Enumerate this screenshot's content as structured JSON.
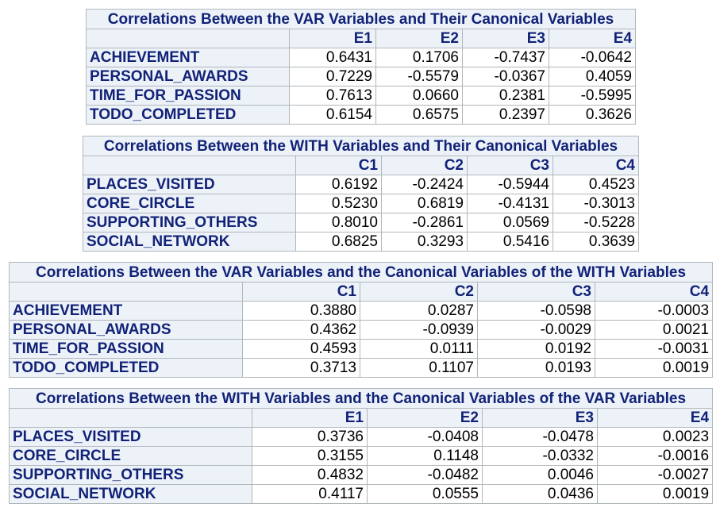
{
  "tables": [
    {
      "title": "Correlations Between the VAR Variables and Their Canonical Variables",
      "columns": [
        "E1",
        "E2",
        "E3",
        "E4"
      ],
      "rows": [
        {
          "label": "ACHIEVEMENT",
          "values": [
            "0.6431",
            "0.1706",
            "-0.7437",
            "-0.0642"
          ]
        },
        {
          "label": "PERSONAL_AWARDS",
          "values": [
            "0.7229",
            "-0.5579",
            "-0.0367",
            "0.4059"
          ]
        },
        {
          "label": "TIME_FOR_PASSION",
          "values": [
            "0.7613",
            "0.0660",
            "0.2381",
            "-0.5995"
          ]
        },
        {
          "label": "TODO_COMPLETED",
          "values": [
            "0.6154",
            "0.6575",
            "0.2397",
            "0.3626"
          ]
        }
      ]
    },
    {
      "title": "Correlations Between the WITH Variables and Their Canonical Variables",
      "columns": [
        "C1",
        "C2",
        "C3",
        "C4"
      ],
      "rows": [
        {
          "label": "PLACES_VISITED",
          "values": [
            "0.6192",
            "-0.2424",
            "-0.5944",
            "0.4523"
          ]
        },
        {
          "label": "CORE_CIRCLE",
          "values": [
            "0.5230",
            "0.6819",
            "-0.4131",
            "-0.3013"
          ]
        },
        {
          "label": "SUPPORTING_OTHERS",
          "values": [
            "0.8010",
            "-0.2861",
            "0.0569",
            "-0.5228"
          ]
        },
        {
          "label": "SOCIAL_NETWORK",
          "values": [
            "0.6825",
            "0.3293",
            "0.5416",
            "0.3639"
          ]
        }
      ]
    },
    {
      "title": "Correlations Between the VAR Variables and the Canonical Variables of the WITH Variables",
      "columns": [
        "C1",
        "C2",
        "C3",
        "C4"
      ],
      "rows": [
        {
          "label": "ACHIEVEMENT",
          "values": [
            "0.3880",
            "0.0287",
            "-0.0598",
            "-0.0003"
          ]
        },
        {
          "label": "PERSONAL_AWARDS",
          "values": [
            "0.4362",
            "-0.0939",
            "-0.0029",
            "0.0021"
          ]
        },
        {
          "label": "TIME_FOR_PASSION",
          "values": [
            "0.4593",
            "0.0111",
            "0.0192",
            "-0.0031"
          ]
        },
        {
          "label": "TODO_COMPLETED",
          "values": [
            "0.3713",
            "0.1107",
            "0.0193",
            "0.0019"
          ]
        }
      ]
    },
    {
      "title": "Correlations Between the WITH Variables and the Canonical Variables of the VAR Variables",
      "columns": [
        "E1",
        "E2",
        "E3",
        "E4"
      ],
      "rows": [
        {
          "label": "PLACES_VISITED",
          "values": [
            "0.3736",
            "-0.0408",
            "-0.0478",
            "0.0023"
          ]
        },
        {
          "label": "CORE_CIRCLE",
          "values": [
            "0.3155",
            "0.1148",
            "-0.0332",
            "-0.0016"
          ]
        },
        {
          "label": "SUPPORTING_OTHERS",
          "values": [
            "0.4832",
            "-0.0482",
            "0.0046",
            "-0.0027"
          ]
        },
        {
          "label": "SOCIAL_NETWORK",
          "values": [
            "0.4117",
            "0.0555",
            "0.0436",
            "0.0019"
          ]
        }
      ]
    }
  ]
}
